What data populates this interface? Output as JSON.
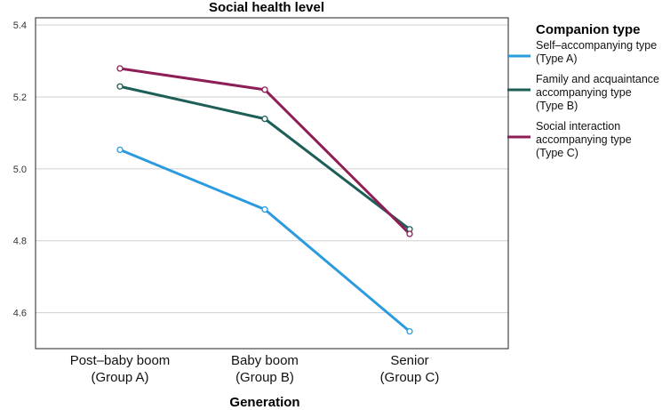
{
  "chart_data": {
    "type": "line",
    "title": "Social health level",
    "xlabel": "Generation",
    "ylabel": "",
    "categories": [
      [
        "Post–baby boom",
        "(Group A)"
      ],
      [
        "Baby boom",
        "(Group B)"
      ],
      [
        "Senior",
        "(Group C)"
      ]
    ],
    "ylim": [
      4.5,
      5.42
    ],
    "yticks": [
      4.6,
      4.8,
      5.0,
      5.2,
      5.4
    ],
    "ytick_labels": [
      "4.6",
      "4.8",
      "5.0",
      "5.2",
      "5.4"
    ],
    "grid": "horizontal",
    "legend": {
      "title": "Companion type",
      "placement": "right"
    },
    "series": [
      {
        "name": [
          "Self–accompanying type",
          "(Type A)"
        ],
        "values": [
          5.053,
          4.887,
          4.548
        ],
        "color": "#2b9be0"
      },
      {
        "name": [
          "Family and acquaintance",
          "accompanying type",
          "(Type B)"
        ],
        "values": [
          5.229,
          5.139,
          4.832
        ],
        "color": "#1d5e57"
      },
      {
        "name": [
          "Social interaction",
          "accompanying type",
          "(Type C)"
        ],
        "values": [
          5.279,
          5.22,
          4.819
        ],
        "color": "#8e1f56"
      }
    ]
  }
}
